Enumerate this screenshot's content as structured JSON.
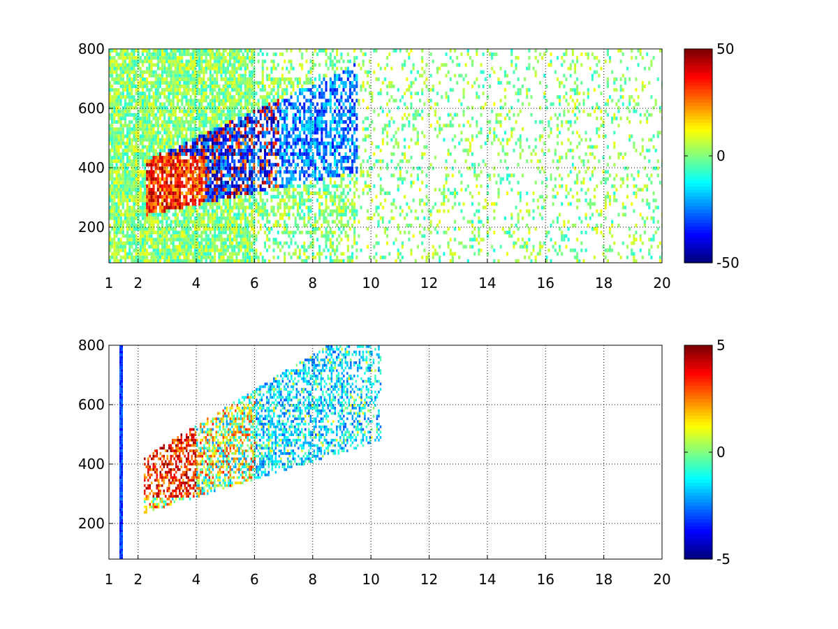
{
  "figure": {
    "background": "#ffffff",
    "colormap": "jet",
    "missing_color": "#ffffff"
  },
  "chart_data": [
    {
      "type": "heatmap",
      "title": "",
      "xlabel": "",
      "ylabel": "",
      "xlim": [
        1,
        20
      ],
      "ylim": [
        80,
        800
      ],
      "xticks": [
        1,
        2,
        4,
        6,
        8,
        10,
        12,
        14,
        16,
        18,
        20
      ],
      "yticks": [
        200,
        400,
        600,
        800
      ],
      "grid": true,
      "grid_style": "dotted",
      "colorbar": {
        "clim": [
          -50,
          50
        ],
        "ticks": [
          -50,
          0,
          50
        ],
        "tick_labels": [
          "-50",
          "0",
          "50"
        ],
        "placement": "right"
      },
      "features": [
        {
          "description": "dense positive core (red/orange)",
          "x_range": [
            2.5,
            4.5
          ],
          "y_range": [
            260,
            420
          ],
          "value": 30
        },
        {
          "description": "negative band (blue)",
          "x_range": [
            4.0,
            6.5
          ],
          "y_range": [
            330,
            550
          ],
          "value": -35
        },
        {
          "description": "scattered near-zero speckle (yellow/green/cyan)",
          "x_range": [
            1.0,
            20.0
          ],
          "y_range": [
            80,
            800
          ],
          "value": 0
        }
      ]
    },
    {
      "type": "heatmap",
      "title": "",
      "xlabel": "",
      "ylabel": "",
      "xlim": [
        1,
        20
      ],
      "ylim": [
        80,
        800
      ],
      "xticks": [
        1,
        2,
        4,
        6,
        8,
        10,
        12,
        14,
        16,
        18,
        20
      ],
      "yticks": [
        200,
        400,
        600,
        800
      ],
      "grid": true,
      "grid_style": "dotted",
      "colorbar": {
        "clim": [
          -5,
          5
        ],
        "ticks": [
          -5,
          0,
          5
        ],
        "tick_labels": [
          "-5",
          "0",
          "5"
        ],
        "placement": "right"
      },
      "features": [
        {
          "description": "strong positive cluster (dark red)",
          "x_range": [
            2.5,
            4.0
          ],
          "y_range": [
            280,
            520
          ],
          "value": 5
        },
        {
          "description": "mixed cluster within wedge",
          "x_range": [
            3.5,
            6.0
          ],
          "y_range": [
            250,
            780
          ],
          "value": 1
        },
        {
          "description": "weak negative edge (cyan/blue)",
          "x_range": [
            6.0,
            9.5
          ],
          "y_range": [
            300,
            620
          ],
          "value": -1.5
        },
        {
          "description": "isolated vertical stripe",
          "x_range": [
            1.35,
            1.45
          ],
          "y_range": [
            90,
            790
          ],
          "value": -4
        }
      ]
    }
  ]
}
